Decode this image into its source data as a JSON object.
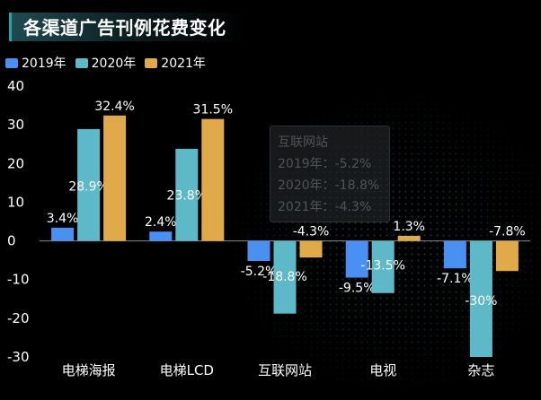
{
  "chart_data": {
    "type": "bar",
    "title": "各渠道广告刊例花费变化",
    "categories": [
      "电梯海报",
      "电梯LCD",
      "互联网站",
      "电视",
      "杂志"
    ],
    "series": [
      {
        "name": "2019年",
        "values": [
          3.4,
          2.4,
          -5.2,
          -9.5,
          -7.1
        ],
        "labels": [
          "3.4%",
          "2.4%",
          "-5.2%",
          "-9.5%",
          "-7.1%"
        ],
        "color": "#4a8ff2"
      },
      {
        "name": "2020年",
        "values": [
          28.9,
          23.8,
          -18.8,
          -13.5,
          -30
        ],
        "labels": [
          "28.9%",
          "23.8%",
          "-18.8%",
          "-13.5%",
          "-30%"
        ],
        "color": "#5db8c8"
      },
      {
        "name": "2021年",
        "values": [
          32.4,
          31.5,
          -4.3,
          1.3,
          -7.8
        ],
        "labels": [
          "32.4%",
          "31.5%",
          "-4.3%",
          "1.3%",
          "-7.8%"
        ],
        "color": "#e0a94a"
      }
    ],
    "ylim": [
      -30,
      40
    ],
    "yticks": [
      40,
      30,
      20,
      10,
      0,
      -10,
      -20,
      -30
    ],
    "legend_position": "top-left",
    "grid": false
  },
  "tooltip": {
    "title": "互联网站",
    "rows": [
      "2019年：-5.2%",
      "2020年：-18.8%",
      "2021年：-4.3%"
    ]
  }
}
